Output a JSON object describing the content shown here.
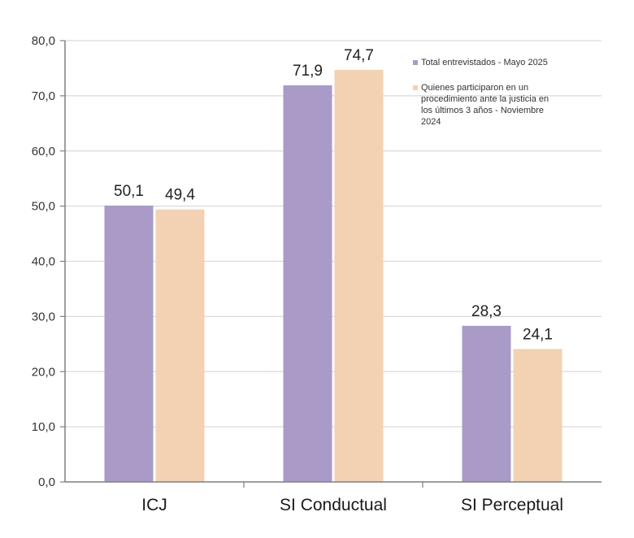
{
  "colors": {
    "series1": "#a99ac8",
    "series2": "#f2d2b3",
    "grid": "#d9d9d9",
    "axis": "#7f7f7f"
  },
  "chart_data": {
    "type": "bar",
    "categories": [
      "ICJ",
      "SI Conductual",
      "SI Perceptual"
    ],
    "series": [
      {
        "name": "Total entrevistados - Mayo 2025",
        "values": [
          50.1,
          71.9,
          28.3
        ],
        "labels": [
          "50,1",
          "71,9",
          "28,3"
        ]
      },
      {
        "name": "Quienes participaron en un procedimiento ante la justicia en los últimos 3 años - Noviembre 2024",
        "values": [
          49.4,
          74.7,
          24.1
        ],
        "labels": [
          "49,4",
          "74,7",
          "24,1"
        ]
      }
    ],
    "y_ticks": [
      "0,0",
      "10,0",
      "20,0",
      "30,0",
      "40,0",
      "50,0",
      "60,0",
      "70,0",
      "80,0"
    ],
    "ylim": [
      0,
      80
    ],
    "grid": true,
    "legend_position": "top-right",
    "title": "",
    "xlabel": "",
    "ylabel": ""
  }
}
